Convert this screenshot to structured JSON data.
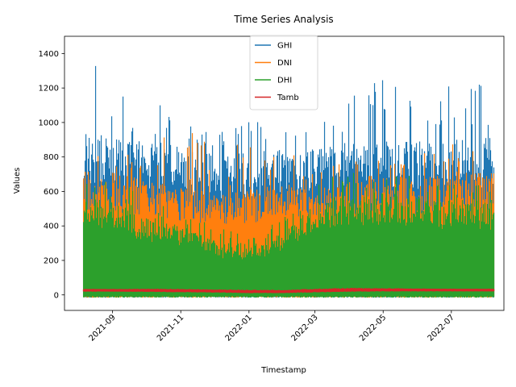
{
  "chart_data": {
    "type": "line",
    "title": "Time Series Analysis",
    "xlabel": "Timestamp",
    "ylabel": "Values",
    "xlim": [
      "2021-07-20",
      "2022-08-17"
    ],
    "ylim": [
      -90,
      1500
    ],
    "x_ticks": [
      "2021-09",
      "2021-11",
      "2022-01",
      "2022-03",
      "2022-05",
      "2022-07"
    ],
    "y_ticks": [
      0,
      200,
      400,
      600,
      800,
      1000,
      1200,
      1400
    ],
    "legend_position": "top-center",
    "grid": false,
    "data_range": [
      "2021-08-06",
      "2022-08-08"
    ],
    "series": [
      {
        "name": "GHI",
        "color": "#1f77b4",
        "x": [
          "2021-08-06",
          "2021-09-01",
          "2021-10-01",
          "2021-11-01",
          "2021-12-01",
          "2022-01-01",
          "2022-02-01",
          "2022-03-01",
          "2022-04-01",
          "2022-05-01",
          "2022-06-01",
          "2022-07-01",
          "2022-08-08"
        ],
        "min": [
          0,
          0,
          0,
          0,
          0,
          0,
          0,
          0,
          0,
          0,
          0,
          0,
          0
        ],
        "max": [
          1400,
          1280,
          1170,
          1000,
          930,
          1010,
          980,
          940,
          1200,
          1250,
          1250,
          1330,
          1290
        ],
        "typical_peak": [
          1000,
          950,
          940,
          900,
          860,
          860,
          900,
          880,
          930,
          940,
          930,
          950,
          950
        ]
      },
      {
        "name": "DNI",
        "color": "#ff7f0e",
        "x": [
          "2021-08-06",
          "2021-09-01",
          "2021-10-01",
          "2021-11-01",
          "2021-12-01",
          "2022-01-01",
          "2022-02-01",
          "2022-03-01",
          "2022-04-01",
          "2022-05-01",
          "2022-06-01",
          "2022-07-01",
          "2022-08-08"
        ],
        "min": [
          0,
          0,
          0,
          0,
          0,
          0,
          0,
          0,
          0,
          0,
          0,
          0,
          0
        ],
        "max": [
          900,
          880,
          890,
          940,
          940,
          930,
          900,
          760,
          780,
          800,
          810,
          880,
          830
        ],
        "typical_peak": [
          760,
          740,
          700,
          650,
          620,
          640,
          680,
          640,
          700,
          740,
          720,
          750,
          740
        ]
      },
      {
        "name": "DHI",
        "color": "#2ca02c",
        "x": [
          "2021-08-06",
          "2021-09-01",
          "2021-10-01",
          "2021-11-01",
          "2021-12-01",
          "2022-01-01",
          "2022-02-01",
          "2022-03-01",
          "2022-04-01",
          "2022-05-01",
          "2022-06-01",
          "2022-07-01",
          "2022-08-08"
        ],
        "min": [
          0,
          0,
          0,
          0,
          0,
          0,
          0,
          0,
          0,
          0,
          0,
          0,
          0
        ],
        "max": [
          700,
          660,
          610,
          480,
          400,
          380,
          450,
          650,
          720,
          700,
          700,
          650,
          640
        ],
        "typical_peak": [
          600,
          560,
          480,
          420,
          330,
          310,
          380,
          560,
          620,
          620,
          600,
          580,
          580
        ]
      },
      {
        "name": "Tamb",
        "color": "#d62728",
        "x": [
          "2021-08-06",
          "2021-09-01",
          "2021-10-01",
          "2021-11-01",
          "2021-12-01",
          "2022-01-01",
          "2022-02-01",
          "2022-03-01",
          "2022-04-01",
          "2022-05-01",
          "2022-06-01",
          "2022-07-01",
          "2022-08-08"
        ],
        "min": [
          18,
          18,
          17,
          15,
          13,
          10,
          10,
          14,
          18,
          19,
          20,
          20,
          20
        ],
        "max": [
          36,
          35,
          36,
          36,
          33,
          30,
          30,
          36,
          42,
          40,
          38,
          36,
          36
        ]
      }
    ]
  }
}
